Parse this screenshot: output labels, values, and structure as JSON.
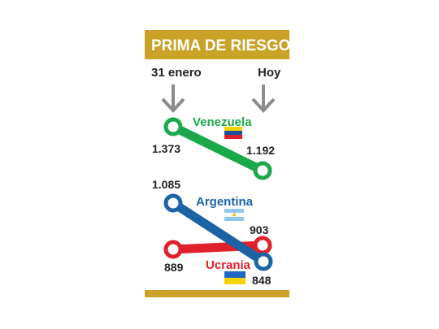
{
  "colors": {
    "header_bg": "#c9a227",
    "header_text": "#ffffff",
    "arrow": "#8c8c8c",
    "footer_bar": "#c9a227",
    "label_text": "#222222"
  },
  "header": {
    "title": "PRIMA DE RIESGO"
  },
  "columns": {
    "start_label": "31 enero",
    "end_label": "Hoy"
  },
  "chart_data": {
    "type": "line",
    "title": "PRIMA DE RIESGO",
    "x": [
      "31 enero",
      "Hoy"
    ],
    "series": [
      {
        "name": "Venezuela",
        "values": [
          1373,
          1192
        ],
        "value_labels": [
          "1.373",
          "1.192"
        ],
        "color": "#1aa84a",
        "flag": "venezuela-flag"
      },
      {
        "name": "Argentina",
        "values": [
          1085,
          848
        ],
        "value_labels": [
          "1.085",
          "848"
        ],
        "color": "#1b63a5",
        "flag": "argentina-flag"
      },
      {
        "name": "Ucrania",
        "values": [
          889,
          903
        ],
        "value_labels": [
          "889",
          "903"
        ],
        "color": "#e0202a",
        "flag": "ukraine-flag"
      }
    ]
  }
}
